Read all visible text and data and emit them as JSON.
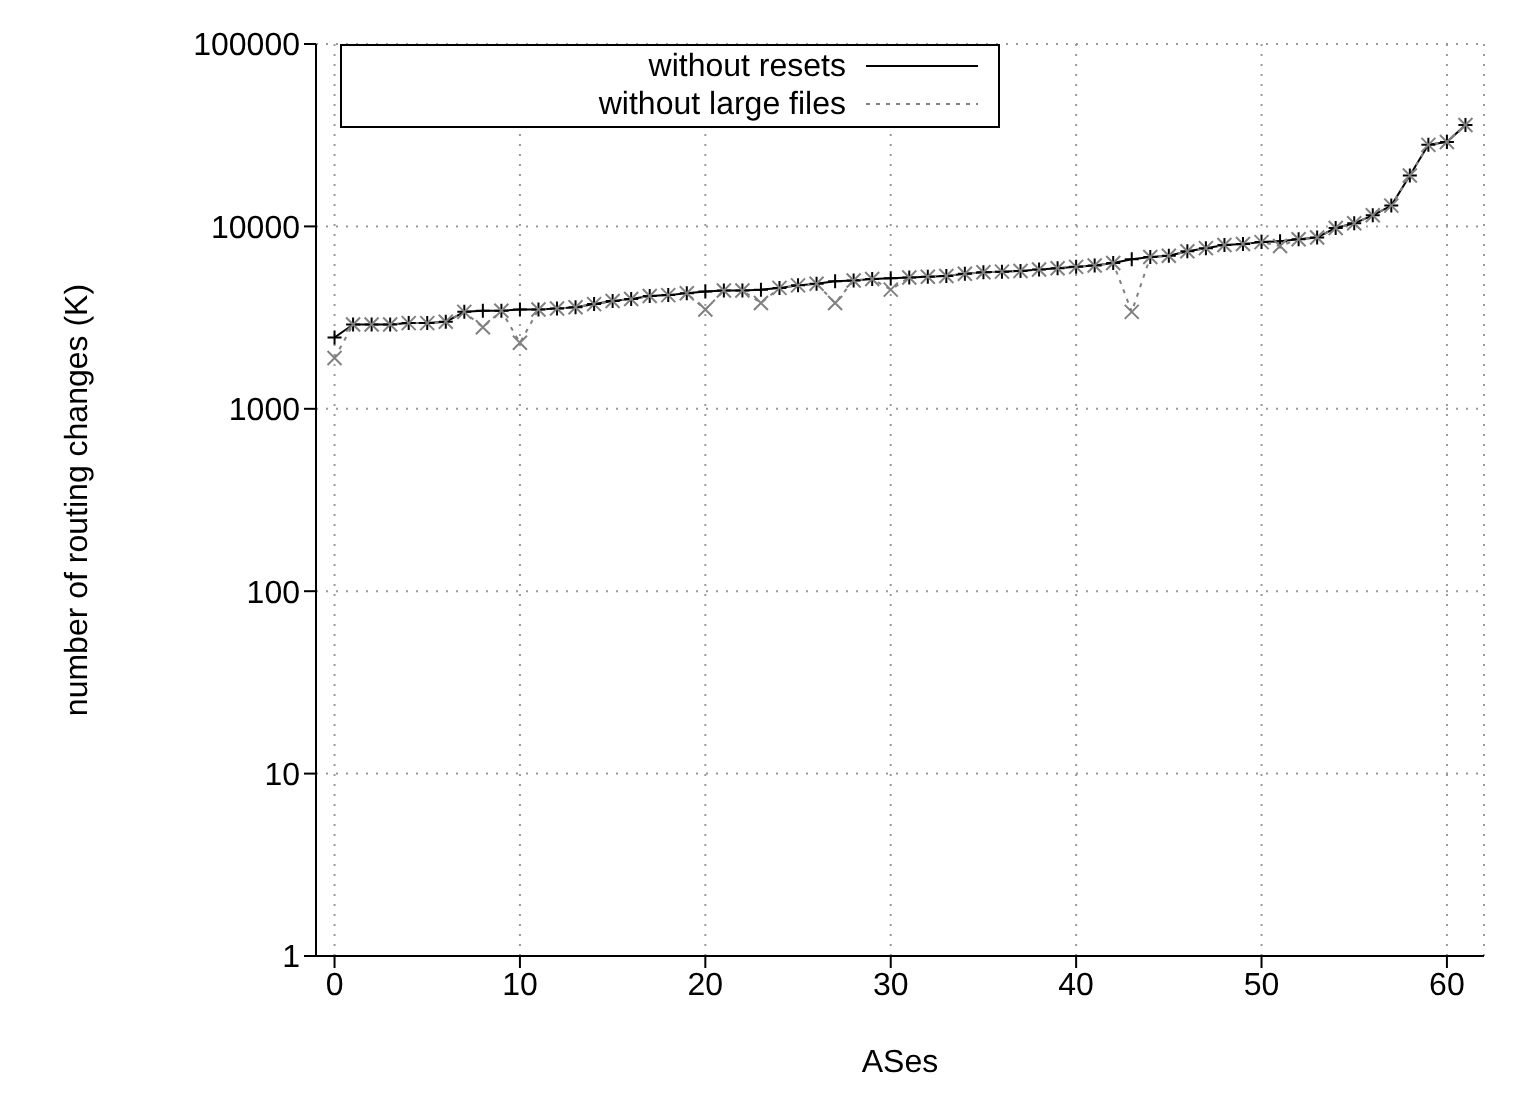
{
  "chart_data": {
    "type": "line",
    "xlabel": "ASes",
    "ylabel": "number of routing changes (K)",
    "x": [
      0,
      1,
      2,
      3,
      4,
      5,
      6,
      7,
      8,
      9,
      10,
      11,
      12,
      13,
      14,
      15,
      16,
      17,
      18,
      19,
      20,
      21,
      22,
      23,
      24,
      25,
      26,
      27,
      28,
      29,
      30,
      31,
      32,
      33,
      34,
      35,
      36,
      37,
      38,
      39,
      40,
      41,
      42,
      43,
      44,
      45,
      46,
      47,
      48,
      49,
      50,
      51,
      52,
      53,
      54,
      55,
      56,
      57,
      58,
      59,
      60,
      61
    ],
    "series": [
      {
        "name": "without resets",
        "color": "#000000",
        "line_style": "solid",
        "values": [
          2460,
          2900,
          2900,
          2900,
          2950,
          2950,
          3000,
          3400,
          3450,
          3450,
          3500,
          3500,
          3550,
          3600,
          3750,
          3900,
          4000,
          4150,
          4200,
          4300,
          4400,
          4450,
          4450,
          4500,
          4600,
          4750,
          4850,
          5000,
          5050,
          5150,
          5200,
          5250,
          5300,
          5350,
          5500,
          5600,
          5650,
          5700,
          5800,
          5900,
          6000,
          6100,
          6300,
          6600,
          6800,
          6900,
          7300,
          7600,
          7900,
          8000,
          8200,
          8300,
          8500,
          8700,
          9800,
          10400,
          11500,
          13000,
          19000,
          28000,
          29000,
          36000
        ]
      },
      {
        "name": "without large files",
        "color": "#808080",
        "line_style": "dotted",
        "values": [
          1900,
          2900,
          2900,
          2900,
          2950,
          2950,
          3000,
          3400,
          2800,
          3450,
          2300,
          3500,
          3550,
          3600,
          3750,
          3900,
          4000,
          4150,
          4200,
          4300,
          3500,
          4450,
          4450,
          3800,
          4600,
          4750,
          4850,
          3800,
          5050,
          5150,
          4500,
          5250,
          5300,
          5350,
          5500,
          5600,
          5650,
          5700,
          5800,
          5900,
          6000,
          6100,
          6300,
          3400,
          6800,
          6900,
          7300,
          7600,
          7900,
          8000,
          8200,
          7800,
          8500,
          8700,
          9800,
          10400,
          11500,
          13000,
          19000,
          28000,
          29000,
          36000
        ]
      }
    ],
    "xlim": [
      -1,
      62
    ],
    "xticks": [
      0,
      10,
      20,
      30,
      40,
      50,
      60
    ],
    "ylim": [
      1,
      100000
    ],
    "yticks": [
      1,
      10,
      100,
      1000,
      10000,
      100000
    ],
    "log": "y",
    "grid": true,
    "legend": "top left",
    "marker": "cross"
  }
}
